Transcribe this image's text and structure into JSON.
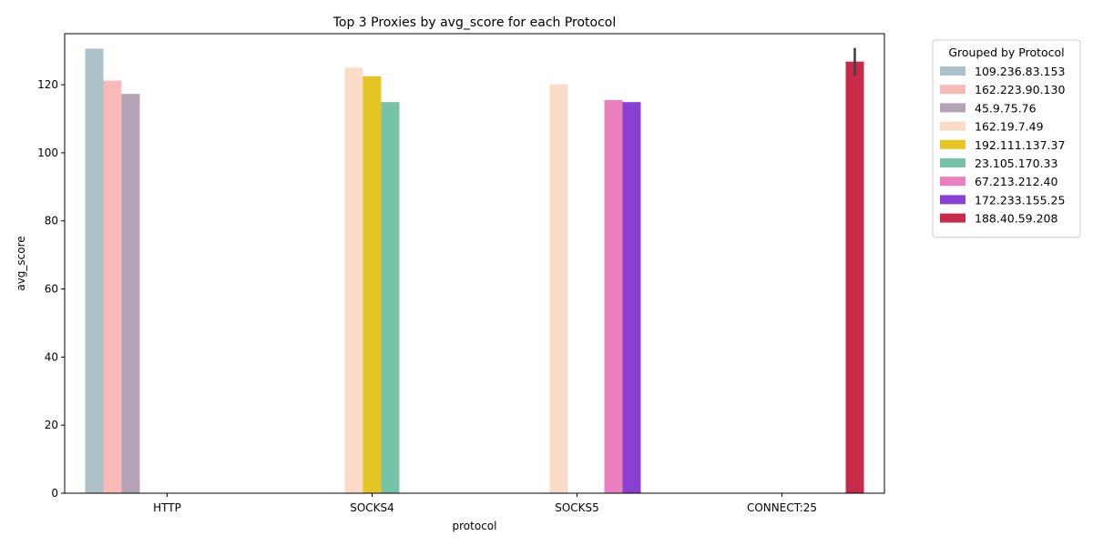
{
  "chart_data": {
    "type": "bar",
    "title": "Top 3 Proxies by avg_score for each Protocol",
    "xlabel": "protocol",
    "ylabel": "avg_score",
    "categories": [
      "HTTP",
      "SOCKS4",
      "SOCKS5",
      "CONNECT:25"
    ],
    "ylim": [
      0,
      135
    ],
    "yticks": [
      0,
      20,
      40,
      60,
      80,
      100,
      120
    ],
    "grid": false,
    "legend": {
      "title": "Grouped by Protocol",
      "placement": "outside-top-right"
    },
    "series": [
      {
        "name": "109.236.83.153",
        "color": "#adc1c9",
        "values": [
          130.6,
          null,
          null,
          null
        ]
      },
      {
        "name": "162.223.90.130",
        "color": "#f7bab6",
        "values": [
          121.2,
          null,
          null,
          null
        ]
      },
      {
        "name": "45.9.75.76",
        "color": "#b3a3b5",
        "values": [
          117.3,
          null,
          null,
          null
        ]
      },
      {
        "name": "162.19.7.49",
        "color": "#f9dbc8",
        "values": [
          null,
          125.0,
          120.1,
          null
        ]
      },
      {
        "name": "192.111.137.37",
        "color": "#e6c424",
        "values": [
          null,
          122.5,
          null,
          null
        ]
      },
      {
        "name": "23.105.170.33",
        "color": "#76c3a7",
        "values": [
          null,
          114.9,
          null,
          null
        ]
      },
      {
        "name": "67.213.212.40",
        "color": "#ec7fbf",
        "values": [
          null,
          null,
          115.5,
          null
        ]
      },
      {
        "name": "172.233.155.25",
        "color": "#8a40d0",
        "values": [
          null,
          null,
          114.9,
          null
        ]
      },
      {
        "name": "188.40.59.208",
        "color": "#c82a4a",
        "values": [
          null,
          null,
          null,
          126.8
        ],
        "error": [
          null,
          null,
          null,
          [
            122.7,
            130.8
          ]
        ]
      }
    ]
  }
}
